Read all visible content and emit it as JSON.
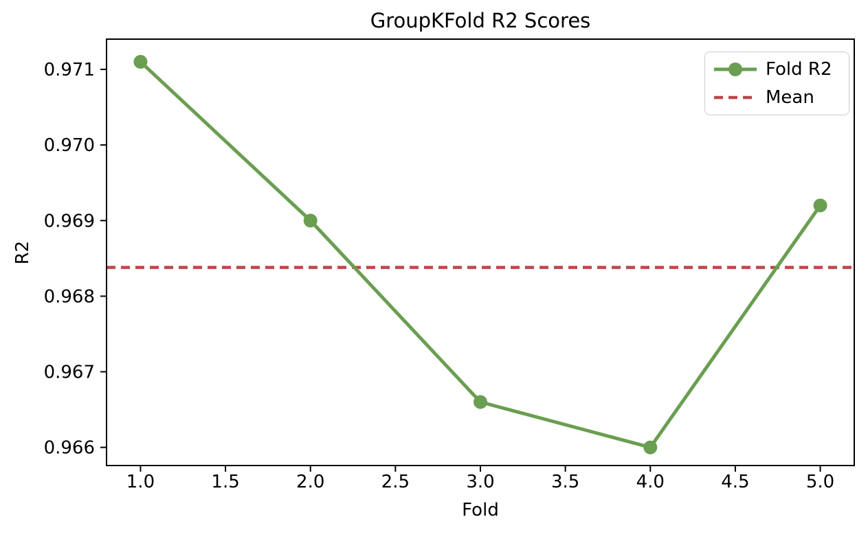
{
  "figure": {
    "background": "#ffffff",
    "axis_color": "#000000",
    "legend_border_color": "#cccccc"
  },
  "chart_data": {
    "type": "line",
    "title": "GroupKFold R2 Scores",
    "xlabel": "Fold",
    "ylabel": "R2",
    "x": [
      1,
      2,
      3,
      4,
      5
    ],
    "series": [
      {
        "name": "Fold R2",
        "values": [
          0.9711,
          0.969,
          0.9666,
          0.966,
          0.9692
        ],
        "color": "#6A9E51",
        "style": "solid-line-circle-markers"
      },
      {
        "name": "Mean",
        "value": 0.96838,
        "color": "#BC4749",
        "style": "dashed-horizontal-line"
      }
    ],
    "xlim": [
      0.8,
      5.2
    ],
    "ylim": [
      0.96576,
      0.9714
    ],
    "xticks": [
      1.0,
      1.5,
      2.0,
      2.5,
      3.0,
      3.5,
      4.0,
      4.5,
      5.0
    ],
    "xtick_labels": [
      "1.0",
      "1.5",
      "2.0",
      "2.5",
      "3.0",
      "3.5",
      "4.0",
      "4.5",
      "5.0"
    ],
    "yticks": [
      0.966,
      0.967,
      0.968,
      0.969,
      0.97,
      0.971
    ],
    "ytick_labels": [
      "0.966",
      "0.967",
      "0.968",
      "0.969",
      "0.970",
      "0.971"
    ],
    "grid": false,
    "legend": {
      "position": "upper right",
      "entries": [
        "Fold R2",
        "Mean"
      ]
    }
  }
}
